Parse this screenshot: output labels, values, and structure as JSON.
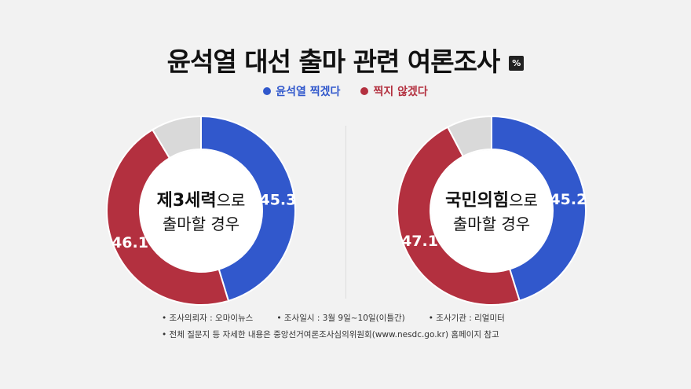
{
  "title": "윤석열 대선 출마 관련 여론조사",
  "unit": "%",
  "colors": {
    "yes": "#3158cc",
    "no": "#b3303f",
    "other": "#d9d9d9"
  },
  "legend": [
    {
      "label": "윤석열 찍겠다",
      "color": "#3158cc"
    },
    {
      "label": "찍지 않겠다",
      "color": "#b3303f"
    }
  ],
  "chart_data": [
    {
      "type": "pie",
      "donut": true,
      "center_label_bold": "제3세력",
      "center_label_rest": "으로",
      "center_label_line2": "출마할 경우",
      "slices": [
        {
          "name": "윤석열 찍겠다",
          "value": 45.3,
          "label": "45.3"
        },
        {
          "name": "찍지 않겠다",
          "value": 46.1,
          "label": "46.1"
        },
        {
          "name": "",
          "value": 8.6,
          "label": ""
        }
      ]
    },
    {
      "type": "pie",
      "donut": true,
      "center_label_bold": "국민의힘",
      "center_label_rest": "으로",
      "center_label_line2": "출마할 경우",
      "slices": [
        {
          "name": "윤석열 찍겠다",
          "value": 45.2,
          "label": "45.2"
        },
        {
          "name": "찍지 않겠다",
          "value": 47.1,
          "label": "47.1"
        },
        {
          "name": "",
          "value": 7.7,
          "label": ""
        }
      ]
    }
  ],
  "footer": {
    "items": [
      "조사의뢰자 : 오마이뉴스",
      "조사일시 : 3월 9일~10일(이틀간)",
      "조사기관 : 리얼미터"
    ],
    "note": "전체 질문지 등 자세한 내용은 중앙선거여론조사심의위원회(www.nesdc.go.kr) 홈페이지 참고"
  }
}
